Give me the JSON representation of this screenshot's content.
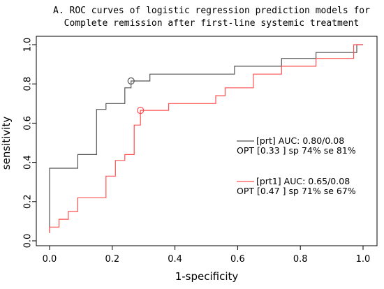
{
  "chart_data": {
    "type": "line",
    "title_lines": [
      "A. ROC curves of logistic regression prediction models for",
      "Complete remission after first-line systemic treatment"
    ],
    "xlabel": "1-specificity",
    "ylabel": "sensitivity",
    "xlim": [
      0,
      1
    ],
    "ylim": [
      0,
      1
    ],
    "x_ticks": [
      "0.0",
      "0.2",
      "0.4",
      "0.6",
      "0.8",
      "1.0"
    ],
    "y_ticks": [
      "0.0",
      "0.2",
      "0.4",
      "0.6",
      "0.8",
      "1.0"
    ],
    "grid": false,
    "legend_position": "center-right",
    "series": [
      {
        "name": "[prt] AUC: 0.80/0.08",
        "stats": "OPT [0.33 ] sp 74% se 81%",
        "color": "#555555",
        "optimal_point": [
          0.26,
          0.815
        ],
        "points": [
          [
            0,
            0.04
          ],
          [
            0,
            0.37
          ],
          [
            0.09,
            0.37
          ],
          [
            0.09,
            0.44
          ],
          [
            0.15,
            0.44
          ],
          [
            0.15,
            0.67
          ],
          [
            0.18,
            0.67
          ],
          [
            0.18,
            0.7
          ],
          [
            0.24,
            0.7
          ],
          [
            0.24,
            0.78
          ],
          [
            0.26,
            0.78
          ],
          [
            0.26,
            0.815
          ],
          [
            0.32,
            0.815
          ],
          [
            0.32,
            0.85
          ],
          [
            0.59,
            0.85
          ],
          [
            0.59,
            0.89
          ],
          [
            0.74,
            0.89
          ],
          [
            0.74,
            0.93
          ],
          [
            0.85,
            0.93
          ],
          [
            0.85,
            0.96
          ],
          [
            0.98,
            0.96
          ],
          [
            0.98,
            1.0
          ],
          [
            1.0,
            1.0
          ]
        ]
      },
      {
        "name": "[prt1] AUC: 0.65/0.08",
        "stats": "OPT [0.47 ] sp 71% se 67%",
        "color": "#ff5050",
        "optimal_point": [
          0.29,
          0.665
        ],
        "points": [
          [
            0,
            0.04
          ],
          [
            0,
            0.07
          ],
          [
            0.03,
            0.07
          ],
          [
            0.03,
            0.11
          ],
          [
            0.06,
            0.11
          ],
          [
            0.06,
            0.15
          ],
          [
            0.09,
            0.15
          ],
          [
            0.09,
            0.22
          ],
          [
            0.18,
            0.22
          ],
          [
            0.18,
            0.33
          ],
          [
            0.21,
            0.33
          ],
          [
            0.21,
            0.41
          ],
          [
            0.24,
            0.41
          ],
          [
            0.24,
            0.44
          ],
          [
            0.27,
            0.44
          ],
          [
            0.27,
            0.59
          ],
          [
            0.29,
            0.59
          ],
          [
            0.29,
            0.665
          ],
          [
            0.38,
            0.665
          ],
          [
            0.38,
            0.7
          ],
          [
            0.53,
            0.7
          ],
          [
            0.53,
            0.74
          ],
          [
            0.56,
            0.74
          ],
          [
            0.56,
            0.78
          ],
          [
            0.65,
            0.78
          ],
          [
            0.65,
            0.85
          ],
          [
            0.74,
            0.85
          ],
          [
            0.74,
            0.89
          ],
          [
            0.85,
            0.89
          ],
          [
            0.85,
            0.93
          ],
          [
            0.97,
            0.93
          ],
          [
            0.97,
            1.0
          ],
          [
            1.0,
            1.0
          ]
        ]
      }
    ]
  }
}
